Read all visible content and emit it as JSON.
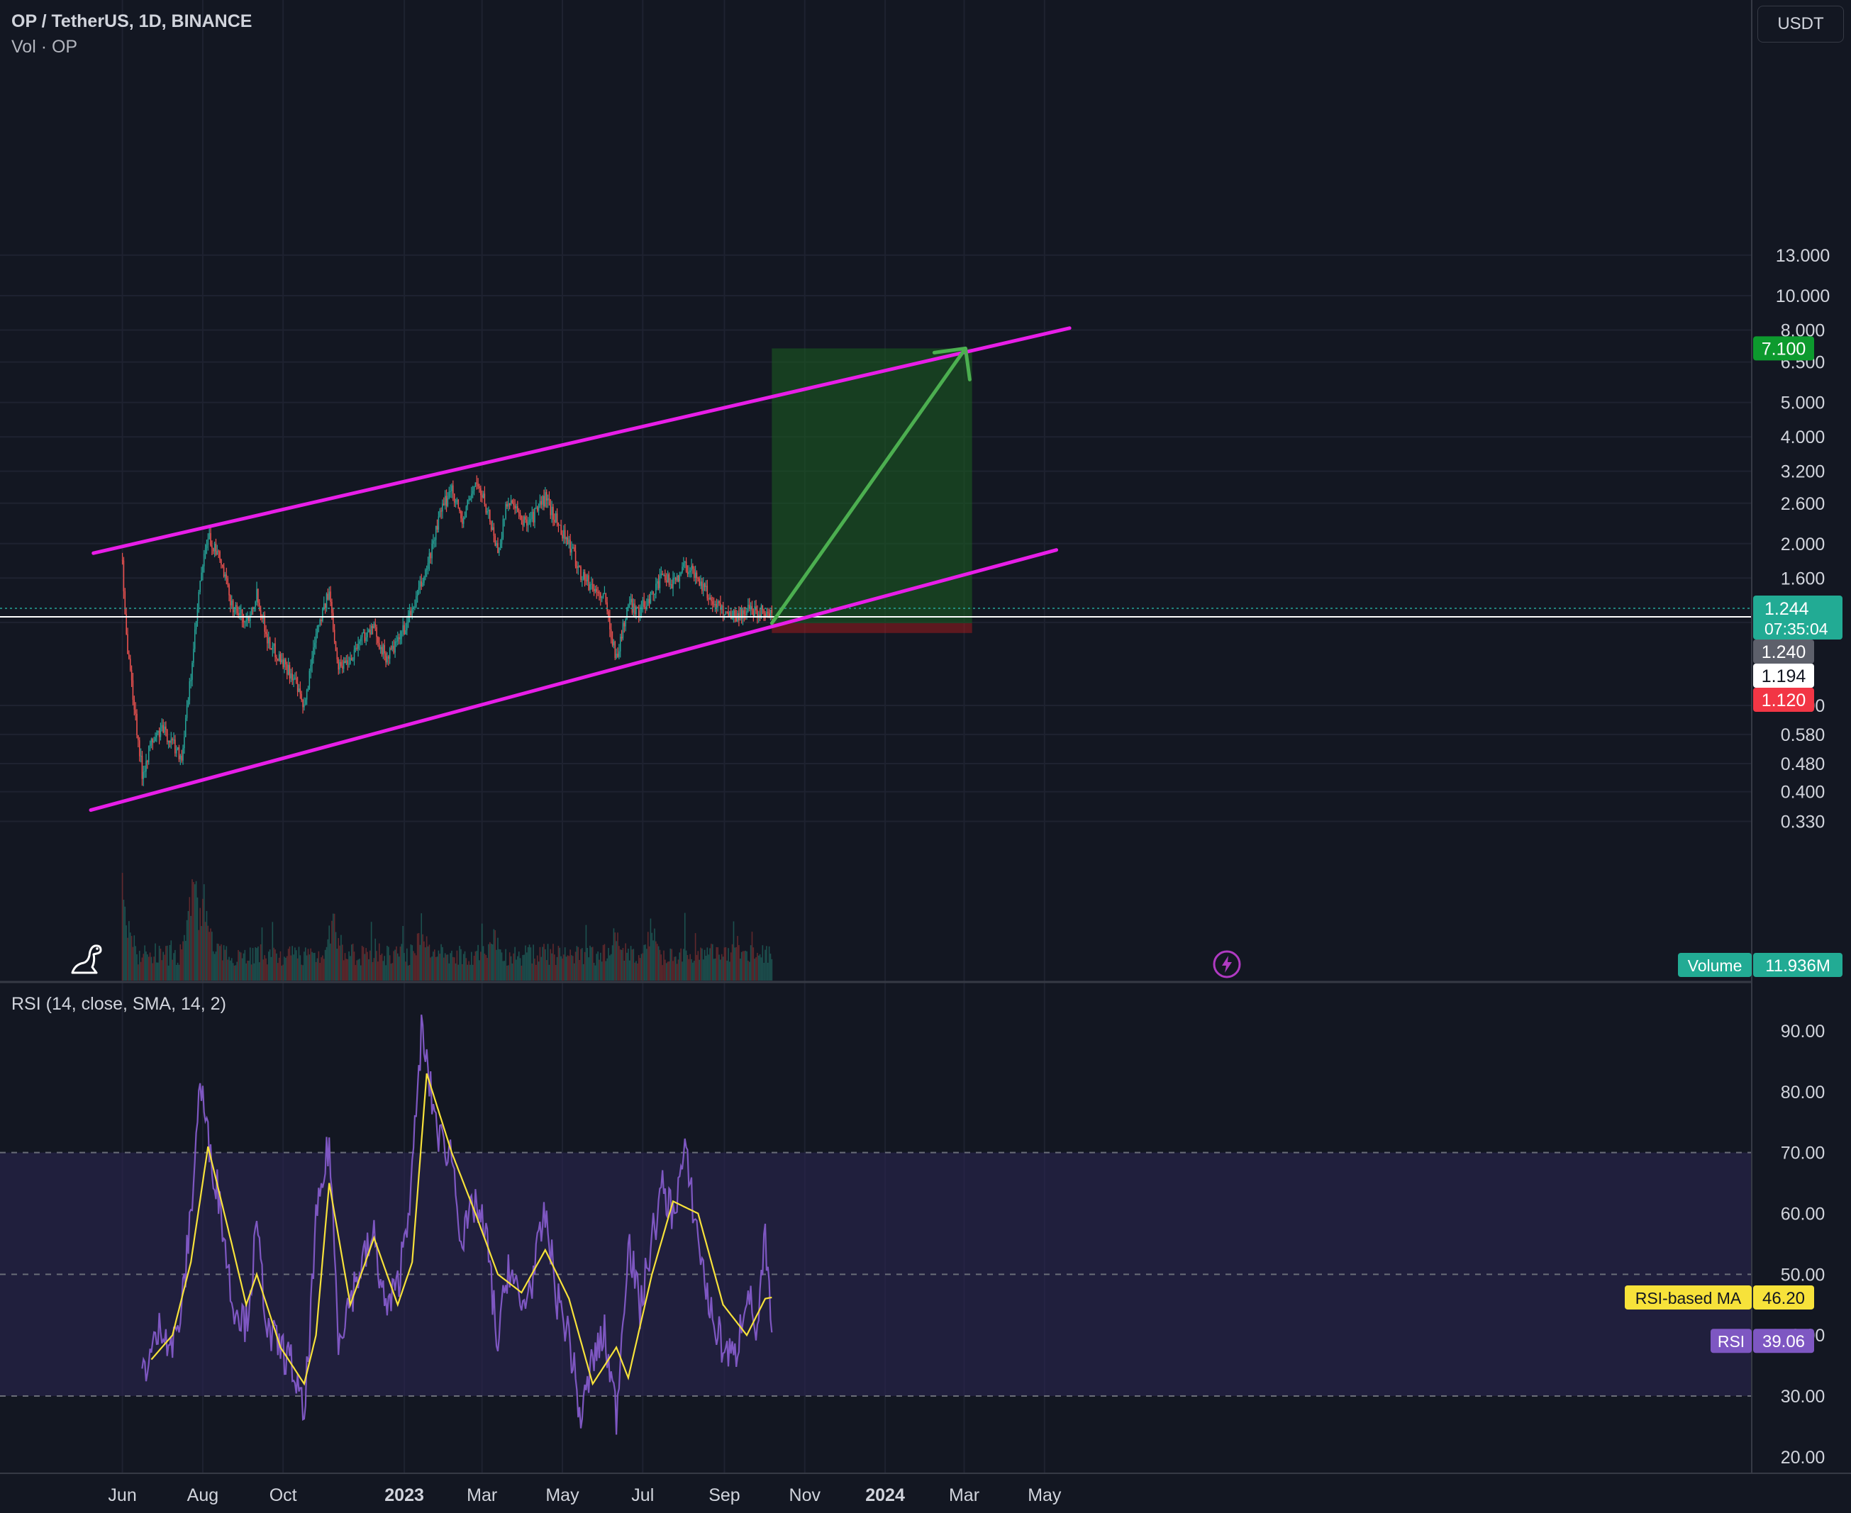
{
  "header": {
    "title": "OP / TetherUS, 1D, BINANCE",
    "volume_label": "Vol · OP",
    "rsi_label": "RSI (14, close, SMA, 14, 2)",
    "currency": "USDT"
  },
  "icons": {
    "logo": "dino-icon",
    "alert": "lightning-icon"
  },
  "colors": {
    "background": "#131722",
    "up": "#26a69a",
    "down": "#ef5350",
    "channel": "#e81ee8",
    "projection_arrow": "#4caf50",
    "target_zone": "#1b5e20",
    "stop_zone": "#b71c1c",
    "rsi_line": "#7e57c2",
    "rsi_ma": "#f7e23a",
    "rsi_band": "#2a2550"
  },
  "axes": {
    "price_ticks": [
      "13.000",
      "10.000",
      "8.000",
      "6.500",
      "5.000",
      "4.000",
      "3.200",
      "2.600",
      "2.000",
      "1.600",
      "1.200",
      "0.700",
      "0.580",
      "0.480",
      "0.400",
      "0.330"
    ],
    "rsi_ticks": [
      "90.00",
      "80.00",
      "70.00",
      "60.00",
      "50.00",
      "40.00",
      "30.00",
      "20.00"
    ],
    "time_ticks": [
      {
        "label": "Jun",
        "bold": false
      },
      {
        "label": "Aug",
        "bold": false
      },
      {
        "label": "Oct",
        "bold": false
      },
      {
        "label": "2023",
        "bold": true
      },
      {
        "label": "Mar",
        "bold": false
      },
      {
        "label": "May",
        "bold": false
      },
      {
        "label": "Jul",
        "bold": false
      },
      {
        "label": "Sep",
        "bold": false
      },
      {
        "label": "Nov",
        "bold": false
      },
      {
        "label": "2024",
        "bold": true
      },
      {
        "label": "Mar",
        "bold": false
      },
      {
        "label": "May",
        "bold": false
      }
    ]
  },
  "price_badges": {
    "target": "7.100",
    "last": "1.244",
    "countdown": "07:35:04",
    "close_level": "1.240",
    "entry": "1.194",
    "stop": "1.120"
  },
  "volume_badge": {
    "label": "Volume",
    "value": "11.936M"
  },
  "rsi_badges": {
    "ma_label": "RSI-based MA",
    "ma_value": "46.20",
    "rsi_label": "RSI",
    "rsi_value": "39.06"
  },
  "chart_data": {
    "type": "candlestick",
    "symbol": "OP / TetherUS",
    "interval": "1D",
    "exchange": "BINANCE",
    "y_scale": "log",
    "ylim": [
      0.3,
      13.5
    ],
    "xlim": [
      "2022-04-18",
      "2024-06-15"
    ],
    "price_path": [
      [
        "2022-06-01",
        1.8
      ],
      [
        "2022-06-04",
        1.1
      ],
      [
        "2022-06-09",
        0.75
      ],
      [
        "2022-06-16",
        0.45
      ],
      [
        "2022-06-23",
        0.55
      ],
      [
        "2022-07-01",
        0.6
      ],
      [
        "2022-07-09",
        0.55
      ],
      [
        "2022-07-16",
        0.5
      ],
      [
        "2022-07-23",
        0.85
      ],
      [
        "2022-07-30",
        1.55
      ],
      [
        "2022-08-05",
        2.1
      ],
      [
        "2022-08-14",
        1.8
      ],
      [
        "2022-08-23",
        1.35
      ],
      [
        "2022-09-03",
        1.2
      ],
      [
        "2022-09-11",
        1.45
      ],
      [
        "2022-09-20",
        1.05
      ],
      [
        "2022-09-29",
        0.95
      ],
      [
        "2022-10-08",
        0.85
      ],
      [
        "2022-10-17",
        0.68
      ],
      [
        "2022-10-26",
        1.15
      ],
      [
        "2022-11-05",
        1.45
      ],
      [
        "2022-11-12",
        0.9
      ],
      [
        "2022-11-21",
        0.95
      ],
      [
        "2022-11-30",
        1.1
      ],
      [
        "2022-12-09",
        1.15
      ],
      [
        "2022-12-18",
        0.95
      ],
      [
        "2022-12-27",
        1.05
      ],
      [
        "2023-01-07",
        1.3
      ],
      [
        "2023-01-18",
        1.7
      ],
      [
        "2023-01-28",
        2.4
      ],
      [
        "2023-02-06",
        2.9
      ],
      [
        "2023-02-14",
        2.3
      ],
      [
        "2023-02-24",
        3.0
      ],
      [
        "2023-03-05",
        2.5
      ],
      [
        "2023-03-13",
        1.9
      ],
      [
        "2023-03-21",
        2.7
      ],
      [
        "2023-03-31",
        2.3
      ],
      [
        "2023-04-09",
        2.4
      ],
      [
        "2023-04-18",
        2.7
      ],
      [
        "2023-04-27",
        2.3
      ],
      [
        "2023-05-06",
        2.0
      ],
      [
        "2023-05-15",
        1.65
      ],
      [
        "2023-05-24",
        1.5
      ],
      [
        "2023-06-02",
        1.4
      ],
      [
        "2023-06-11",
        0.95
      ],
      [
        "2023-06-20",
        1.35
      ],
      [
        "2023-06-29",
        1.3
      ],
      [
        "2023-07-08",
        1.45
      ],
      [
        "2023-07-16",
        1.6
      ],
      [
        "2023-07-24",
        1.55
      ],
      [
        "2023-08-02",
        1.75
      ],
      [
        "2023-08-12",
        1.6
      ],
      [
        "2023-08-21",
        1.4
      ],
      [
        "2023-08-31",
        1.3
      ],
      [
        "2023-09-09",
        1.25
      ],
      [
        "2023-09-18",
        1.3
      ],
      [
        "2023-09-26",
        1.3
      ],
      [
        "2023-10-02",
        1.3
      ],
      [
        "2023-10-07",
        1.24
      ]
    ],
    "rsi_path": [
      [
        "2022-06-16",
        34
      ],
      [
        "2022-06-23",
        37
      ],
      [
        "2022-07-01",
        42
      ],
      [
        "2022-07-09",
        38
      ],
      [
        "2022-07-16",
        44
      ],
      [
        "2022-07-23",
        60
      ],
      [
        "2022-07-30",
        82
      ],
      [
        "2022-08-05",
        72
      ],
      [
        "2022-08-14",
        62
      ],
      [
        "2022-08-23",
        46
      ],
      [
        "2022-09-03",
        42
      ],
      [
        "2022-09-11",
        57
      ],
      [
        "2022-09-20",
        40
      ],
      [
        "2022-09-29",
        38
      ],
      [
        "2022-10-08",
        35
      ],
      [
        "2022-10-17",
        26
      ],
      [
        "2022-10-26",
        58
      ],
      [
        "2022-11-05",
        72
      ],
      [
        "2022-11-12",
        40
      ],
      [
        "2022-11-21",
        46
      ],
      [
        "2022-11-30",
        52
      ],
      [
        "2022-12-09",
        56
      ],
      [
        "2022-12-18",
        44
      ],
      [
        "2022-12-27",
        48
      ],
      [
        "2023-01-07",
        66
      ],
      [
        "2023-01-14",
        90
      ],
      [
        "2023-01-21",
        80
      ],
      [
        "2023-01-28",
        72
      ],
      [
        "2023-02-06",
        70
      ],
      [
        "2023-02-14",
        55
      ],
      [
        "2023-02-24",
        62
      ],
      [
        "2023-03-05",
        55
      ],
      [
        "2023-03-13",
        38
      ],
      [
        "2023-03-21",
        52
      ],
      [
        "2023-03-31",
        44
      ],
      [
        "2023-04-09",
        50
      ],
      [
        "2023-04-18",
        60
      ],
      [
        "2023-04-27",
        46
      ],
      [
        "2023-05-06",
        40
      ],
      [
        "2023-05-15",
        26
      ],
      [
        "2023-05-24",
        36
      ],
      [
        "2023-06-02",
        40
      ],
      [
        "2023-06-11",
        27
      ],
      [
        "2023-06-20",
        56
      ],
      [
        "2023-06-29",
        44
      ],
      [
        "2023-07-08",
        56
      ],
      [
        "2023-07-16",
        64
      ],
      [
        "2023-07-24",
        60
      ],
      [
        "2023-08-02",
        70
      ],
      [
        "2023-08-12",
        56
      ],
      [
        "2023-08-21",
        44
      ],
      [
        "2023-08-31",
        38
      ],
      [
        "2023-09-09",
        36
      ],
      [
        "2023-09-18",
        48
      ],
      [
        "2023-09-26",
        40
      ],
      [
        "2023-10-02",
        56
      ],
      [
        "2023-10-07",
        39
      ]
    ],
    "rsi_ma_path": [
      [
        "2022-06-23",
        36
      ],
      [
        "2022-07-09",
        40
      ],
      [
        "2022-07-23",
        52
      ],
      [
        "2022-08-05",
        71
      ],
      [
        "2022-08-23",
        55
      ],
      [
        "2022-09-03",
        45
      ],
      [
        "2022-09-11",
        50
      ],
      [
        "2022-09-29",
        38
      ],
      [
        "2022-10-17",
        32
      ],
      [
        "2022-10-26",
        40
      ],
      [
        "2022-11-05",
        65
      ],
      [
        "2022-11-21",
        45
      ],
      [
        "2022-12-09",
        56
      ],
      [
        "2022-12-27",
        45
      ],
      [
        "2023-01-07",
        52
      ],
      [
        "2023-01-18",
        83
      ],
      [
        "2023-02-06",
        70
      ],
      [
        "2023-02-24",
        60
      ],
      [
        "2023-03-13",
        50
      ],
      [
        "2023-03-31",
        47
      ],
      [
        "2023-04-18",
        54
      ],
      [
        "2023-05-06",
        46
      ],
      [
        "2023-05-24",
        32
      ],
      [
        "2023-06-11",
        38
      ],
      [
        "2023-06-20",
        33
      ],
      [
        "2023-07-08",
        50
      ],
      [
        "2023-07-24",
        62
      ],
      [
        "2023-08-12",
        60
      ],
      [
        "2023-08-31",
        45
      ],
      [
        "2023-09-18",
        40
      ],
      [
        "2023-10-02",
        46
      ],
      [
        "2023-10-07",
        46.2
      ]
    ],
    "volume_spikes": [
      [
        "2022-06-01",
        0.9
      ],
      [
        "2022-07-25",
        1.0
      ],
      [
        "2022-08-02",
        0.8
      ],
      [
        "2022-11-08",
        0.6
      ],
      [
        "2023-01-14",
        0.55
      ],
      [
        "2023-03-10",
        0.5
      ],
      [
        "2023-06-11",
        0.45
      ],
      [
        "2023-07-08",
        0.55
      ]
    ],
    "channel_lines": [
      {
        "name": "upper",
        "from": [
          "2022-05-10",
          1.88
        ],
        "to": [
          "2024-05-20",
          8.1
        ]
      },
      {
        "name": "lower",
        "from": [
          "2022-05-08",
          0.355
        ],
        "to": [
          "2024-05-10",
          1.92
        ]
      }
    ],
    "projection": {
      "from": [
        "2023-10-07",
        1.194
      ],
      "to": [
        "2024-03-02",
        7.1
      ]
    },
    "long_position": {
      "start": "2023-10-07",
      "end": "2024-03-07",
      "entry": 1.194,
      "target": 7.1,
      "stop": 1.12
    },
    "rsi_bands": {
      "upper": 70,
      "middle": 50,
      "lower": 30
    },
    "rsi_ylim": [
      17,
      95
    ]
  }
}
